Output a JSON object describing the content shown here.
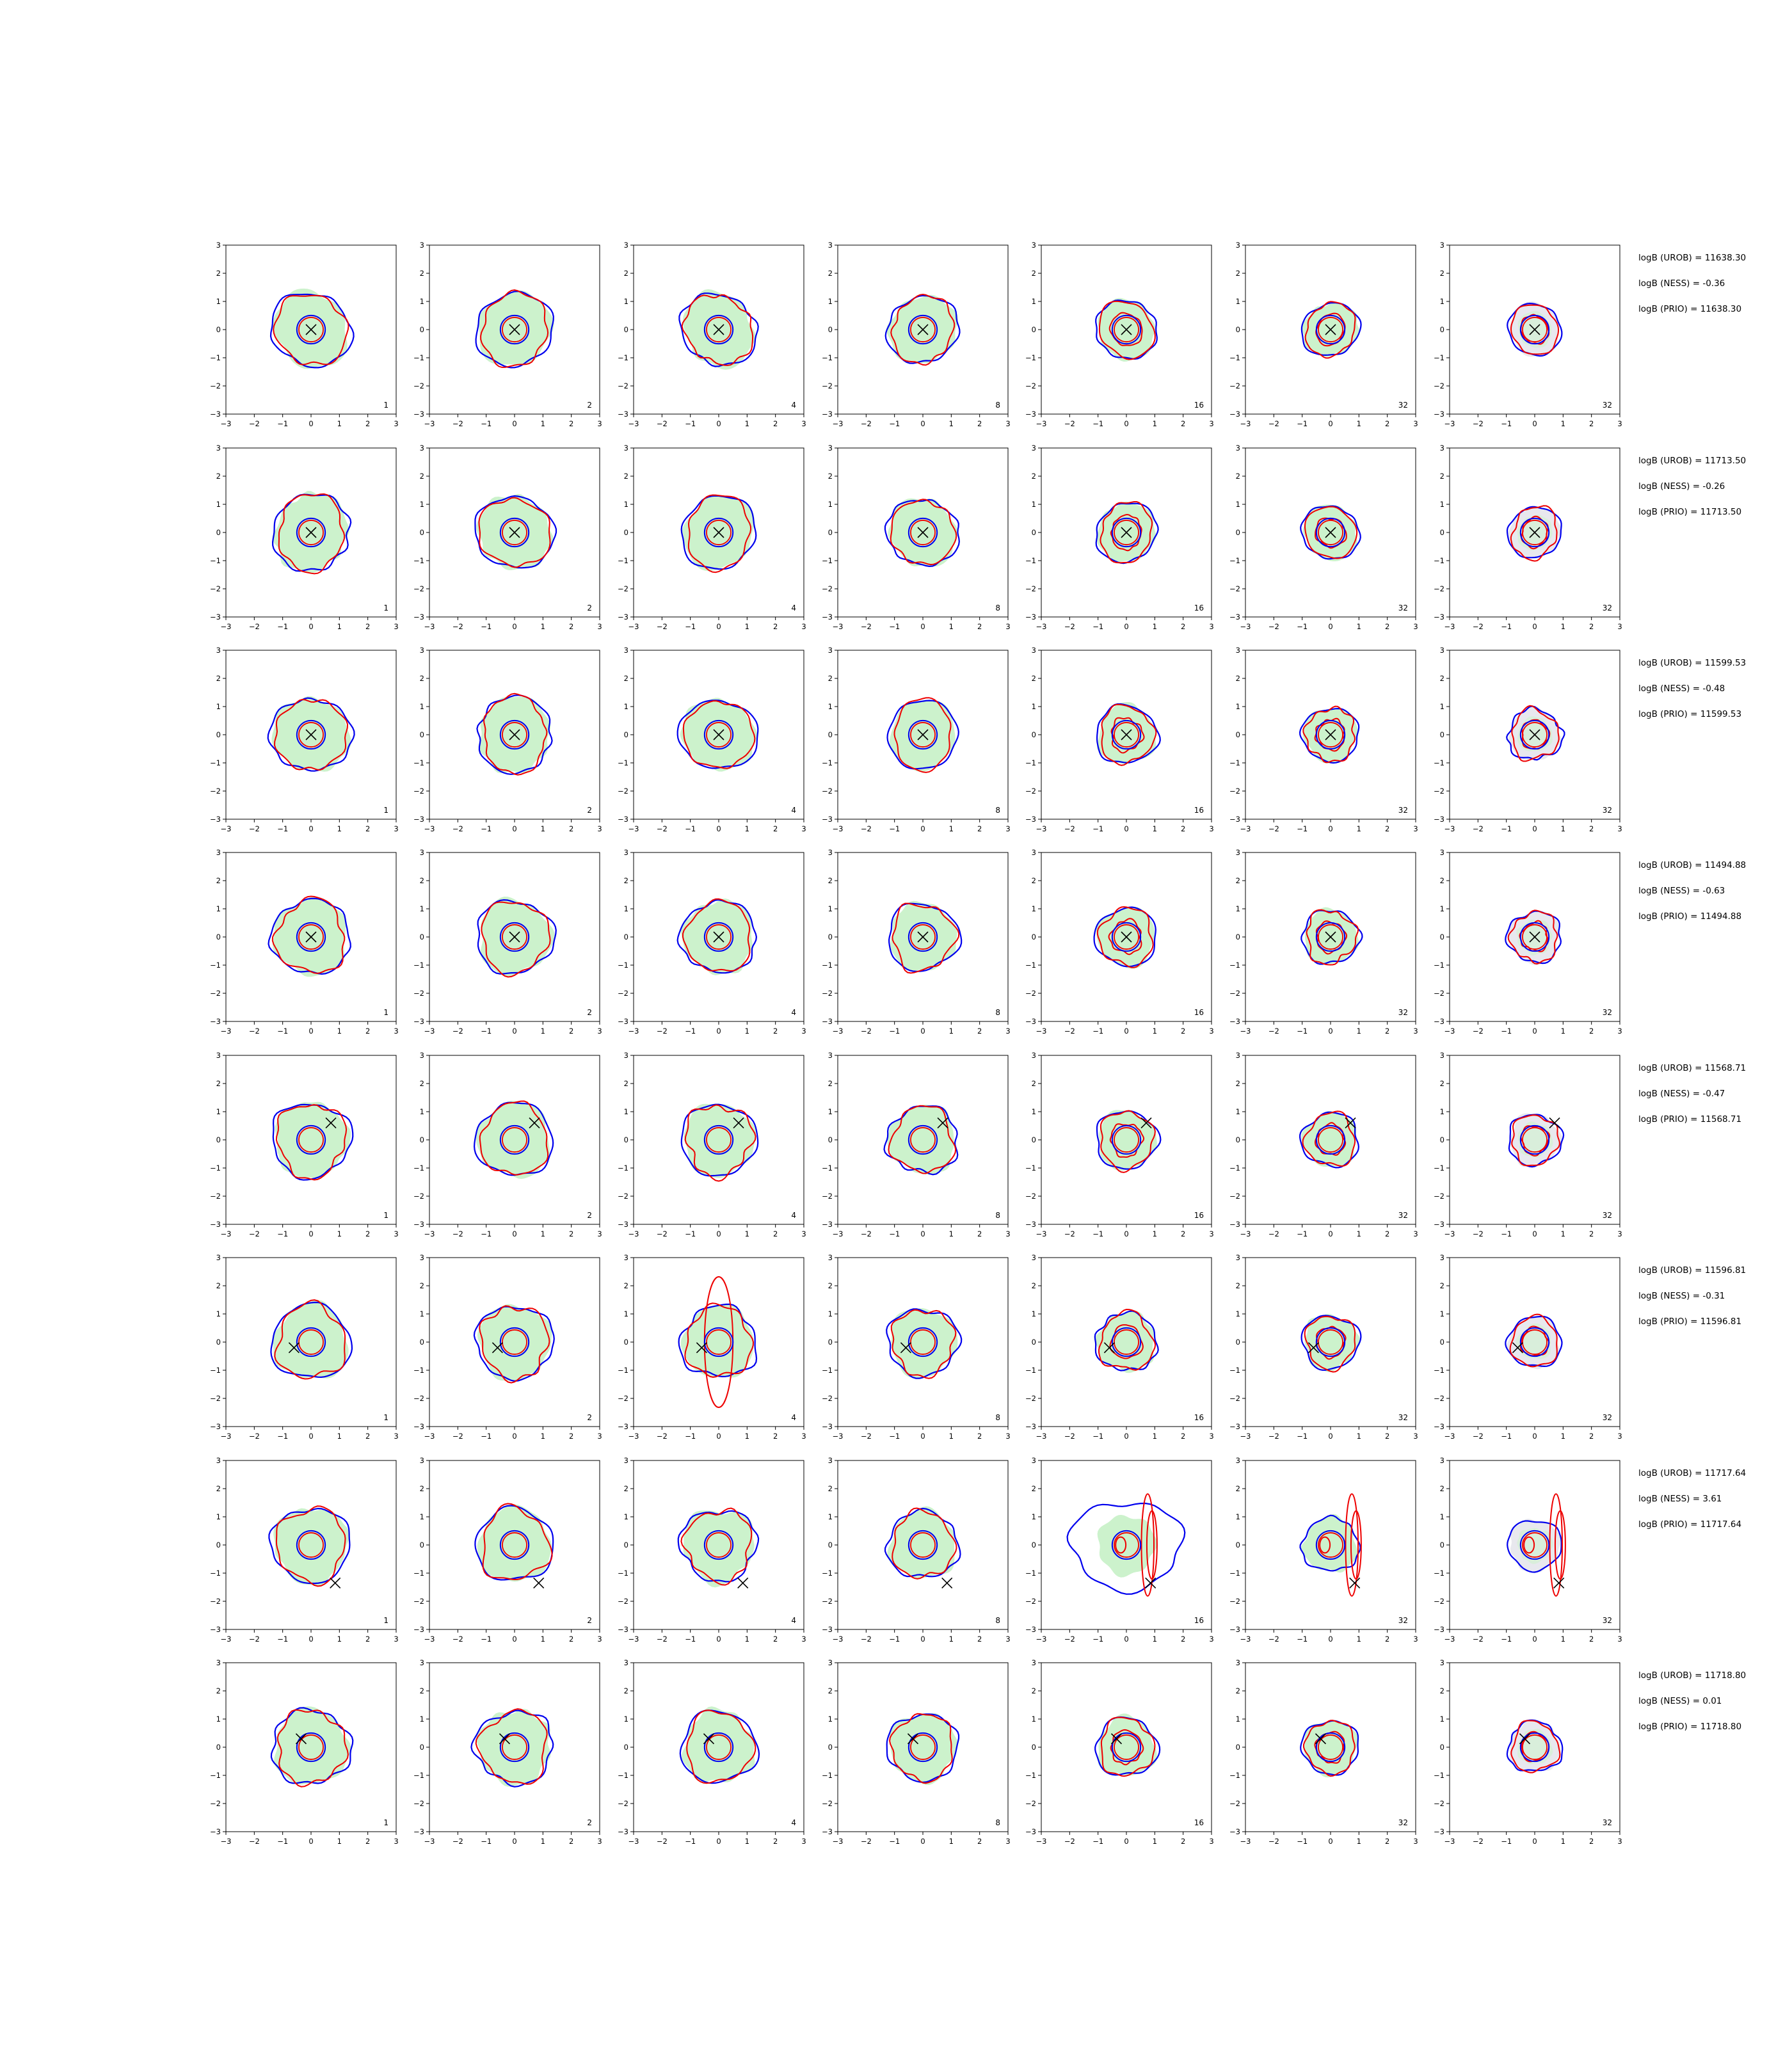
{
  "chart_data": {
    "type": "contour-grid",
    "xlim": [
      -3,
      3
    ],
    "ylim": [
      -3,
      3
    ],
    "xticks": [
      -3,
      -2,
      -1,
      0,
      1,
      2,
      3
    ],
    "yticks": [
      -3,
      -2,
      -1,
      0,
      1,
      2,
      3
    ],
    "column_labels": [
      "1",
      "2",
      "4",
      "8",
      "16",
      "32",
      "32"
    ],
    "colors": {
      "blue_contour": "#0000ee",
      "red_contour": "#ee0000",
      "fill_green": "#ccf2cc",
      "fill_grey": "#e8e8ee",
      "marker": "#000000"
    },
    "rows": [
      {
        "marker": [
          0.0,
          0.0
        ],
        "stats": [
          "logB (UROB) = 11638.30",
          "logB (NESS) = -0.36",
          "logB (PRIO) = 11638.30"
        ]
      },
      {
        "marker": [
          0.0,
          0.0
        ],
        "stats": [
          "logB (UROB) = 11713.50",
          "logB (NESS) = -0.26",
          "logB (PRIO) = 11713.50"
        ]
      },
      {
        "marker": [
          0.0,
          0.0
        ],
        "stats": [
          "logB (UROB) = 11599.53",
          "logB (NESS) = -0.48",
          "logB (PRIO) = 11599.53"
        ]
      },
      {
        "marker": [
          0.0,
          0.0
        ],
        "stats": [
          "logB (UROB) = 11494.88",
          "logB (NESS) = -0.63",
          "logB (PRIO) = 11494.88"
        ]
      },
      {
        "marker": [
          0.7,
          0.6
        ],
        "stats": [
          "logB (UROB) = 11568.71",
          "logB (NESS) = -0.47",
          "logB (PRIO) = 11568.71"
        ]
      },
      {
        "marker": [
          -0.6,
          -0.2
        ],
        "stats": [
          "logB (UROB) = 11596.81",
          "logB (NESS) = -0.31",
          "logB (PRIO) = 11596.81"
        ]
      },
      {
        "marker": [
          0.85,
          -1.35
        ],
        "stats": [
          "logB (UROB) = 11717.64",
          "logB (NESS) = 3.61",
          "logB (PRIO) = 11717.64"
        ]
      },
      {
        "marker": [
          -0.35,
          0.3
        ],
        "stats": [
          "logB (UROB) = 11718.80",
          "logB (NESS) = 0.01",
          "logB (PRIO) = 11718.80"
        ]
      }
    ]
  }
}
